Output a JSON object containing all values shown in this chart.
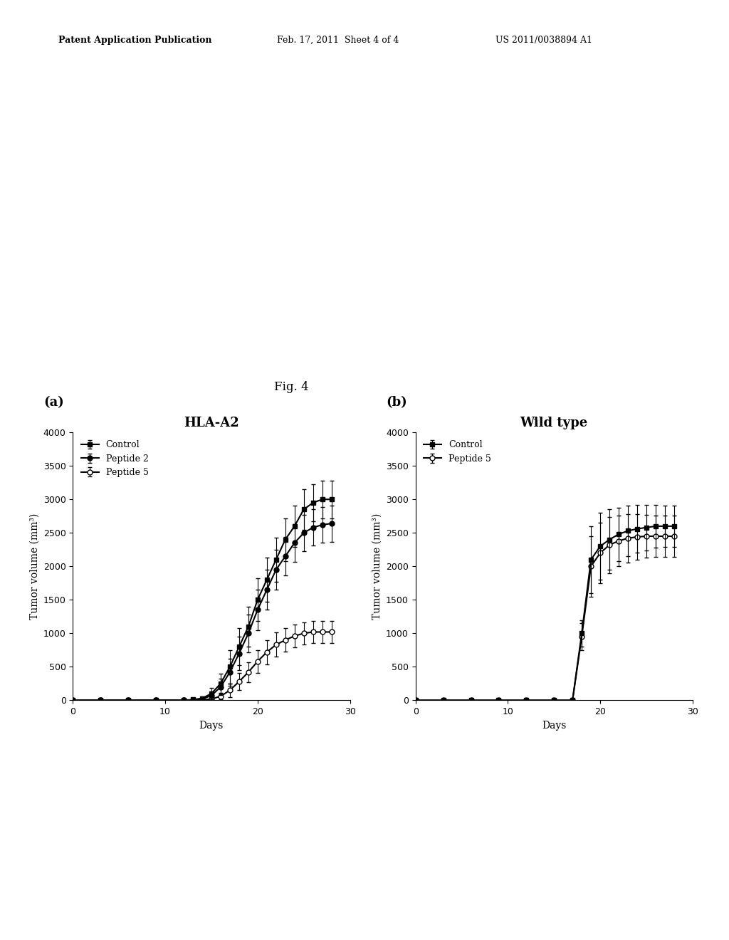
{
  "fig_label": "Fig. 4",
  "patent_header": "Patent Application Publication",
  "patent_date": "Feb. 17, 2011  Sheet 4 of 4",
  "patent_number": "US 2011/0038894 A1",
  "plot_a": {
    "title": "HLA-A2",
    "panel_label": "(a)",
    "xlabel": "Days",
    "ylabel": "Tumor volume (mm³)",
    "xlim": [
      0,
      30
    ],
    "ylim": [
      0,
      4000
    ],
    "yticks": [
      0,
      500,
      1000,
      1500,
      2000,
      2500,
      3000,
      3500,
      4000
    ],
    "xticks": [
      0,
      10,
      20,
      30
    ],
    "legend": [
      "Control",
      "Peptide 2",
      "Peptide 5"
    ],
    "control": {
      "x": [
        0,
        3,
        6,
        9,
        12,
        13,
        14,
        15,
        16,
        17,
        18,
        19,
        20,
        21,
        22,
        23,
        24,
        25,
        26,
        27,
        28
      ],
      "y": [
        0,
        0,
        0,
        0,
        0,
        10,
        30,
        100,
        250,
        500,
        800,
        1100,
        1500,
        1800,
        2100,
        2400,
        2600,
        2850,
        2950,
        3000,
        3000
      ],
      "yerr": [
        0,
        0,
        0,
        0,
        0,
        10,
        30,
        80,
        150,
        250,
        280,
        300,
        320,
        330,
        330,
        320,
        310,
        300,
        280,
        280,
        280
      ]
    },
    "peptide2": {
      "x": [
        0,
        3,
        6,
        9,
        12,
        13,
        14,
        15,
        16,
        17,
        18,
        19,
        20,
        21,
        22,
        23,
        24,
        25,
        26,
        27,
        28
      ],
      "y": [
        0,
        0,
        0,
        0,
        0,
        5,
        20,
        70,
        200,
        420,
        700,
        1000,
        1350,
        1650,
        1950,
        2150,
        2350,
        2500,
        2580,
        2620,
        2640
      ],
      "yerr": [
        0,
        0,
        0,
        0,
        0,
        5,
        20,
        60,
        120,
        200,
        250,
        280,
        300,
        300,
        300,
        290,
        280,
        270,
        270,
        270,
        270
      ]
    },
    "peptide5": {
      "x": [
        0,
        3,
        6,
        9,
        12,
        13,
        14,
        15,
        16,
        17,
        18,
        19,
        20,
        21,
        22,
        23,
        24,
        25,
        26,
        27,
        28
      ],
      "y": [
        0,
        0,
        0,
        0,
        0,
        0,
        5,
        20,
        60,
        150,
        280,
        420,
        580,
        720,
        830,
        900,
        960,
        1000,
        1020,
        1020,
        1020
      ],
      "yerr": [
        0,
        0,
        0,
        0,
        0,
        0,
        5,
        20,
        50,
        100,
        130,
        150,
        170,
        180,
        180,
        175,
        170,
        165,
        165,
        165,
        165
      ]
    }
  },
  "plot_b": {
    "title": "Wild type",
    "panel_label": "(b)",
    "xlabel": "Days",
    "ylabel": "Tumor volume (mm³)",
    "xlim": [
      0,
      30
    ],
    "ylim": [
      0,
      4000
    ],
    "yticks": [
      0,
      500,
      1000,
      1500,
      2000,
      2500,
      3000,
      3500,
      4000
    ],
    "xticks": [
      0,
      10,
      20,
      30
    ],
    "legend": [
      "Control",
      "Peptide 5"
    ],
    "control": {
      "x": [
        0,
        3,
        6,
        9,
        12,
        15,
        17,
        18,
        19,
        20,
        21,
        22,
        23,
        24,
        25,
        26,
        27,
        28
      ],
      "y": [
        0,
        0,
        0,
        0,
        0,
        0,
        0,
        1000,
        2100,
        2300,
        2400,
        2480,
        2530,
        2560,
        2580,
        2600,
        2600,
        2600
      ],
      "yerr": [
        0,
        0,
        0,
        0,
        0,
        0,
        0,
        200,
        500,
        500,
        450,
        400,
        380,
        360,
        340,
        320,
        310,
        310
      ]
    },
    "peptide5": {
      "x": [
        0,
        3,
        6,
        9,
        12,
        15,
        17,
        18,
        19,
        20,
        21,
        22,
        23,
        24,
        25,
        26,
        27,
        28
      ],
      "y": [
        0,
        0,
        0,
        0,
        0,
        0,
        0,
        950,
        2000,
        2200,
        2320,
        2380,
        2420,
        2440,
        2450,
        2450,
        2450,
        2450
      ],
      "yerr": [
        0,
        0,
        0,
        0,
        0,
        0,
        0,
        200,
        450,
        450,
        420,
        380,
        360,
        340,
        320,
        310,
        310,
        310
      ]
    }
  },
  "background_color": "#ffffff",
  "line_color": "#000000",
  "marker_size": 5,
  "linewidth": 1.5,
  "capsize": 2,
  "elinewidth": 0.8,
  "header_fontsize": 9,
  "fig_label_fontsize": 12,
  "panel_label_fontsize": 13,
  "title_fontsize": 13,
  "axis_label_fontsize": 10,
  "tick_fontsize": 9,
  "legend_fontsize": 9
}
